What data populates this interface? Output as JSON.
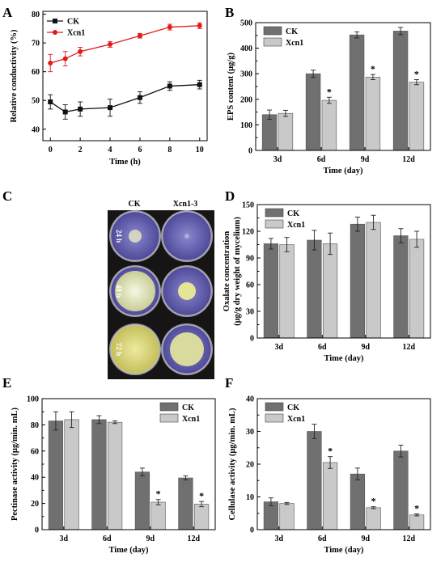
{
  "colors": {
    "ck_line": "#111111",
    "xcn_line": "#e01b1b",
    "ck_bar": "#707070",
    "xcn_bar": "#c9c9c9",
    "dish_purple": "#6f6bb5",
    "dish_yellow": "#d9d77a"
  },
  "chart_data": [
    {
      "panel": "A",
      "type": "line",
      "xlabel": "Time (h)",
      "ylabel": "Relative conductivity (%)",
      "x": [
        0,
        1,
        2,
        4,
        6,
        8,
        10
      ],
      "xticks": [
        "0",
        "2",
        "4",
        "6",
        "8",
        "10"
      ],
      "yticks": [
        "40",
        "50",
        "60",
        "70",
        "80"
      ],
      "xlim": [
        -0.5,
        10.5
      ],
      "ylim": [
        36,
        81
      ],
      "legend": "top-left",
      "series": [
        {
          "name": "CK",
          "values": [
            49.5,
            46,
            47,
            47.5,
            51,
            55,
            55.5
          ],
          "errors": [
            2.5,
            2.5,
            2.5,
            3,
            2,
            1.5,
            1.5
          ],
          "color": "#111111",
          "marker": "square"
        },
        {
          "name": "Xcn1",
          "values": [
            63,
            64.5,
            67,
            69.5,
            72.5,
            75.5,
            76
          ],
          "errors": [
            3,
            2.5,
            1.5,
            1,
            0.8,
            1,
            1
          ],
          "color": "#e01b1b",
          "marker": "circle"
        }
      ]
    },
    {
      "panel": "B",
      "type": "bar",
      "xlabel": "Time (day)",
      "ylabel": "EPS content (μg/g)",
      "categories": [
        "3d",
        "6d",
        "9d",
        "12d"
      ],
      "yticks": [
        "0",
        "100",
        "200",
        "300",
        "400",
        "500"
      ],
      "ylim": [
        0,
        500
      ],
      "legend": "top-left",
      "series": [
        {
          "name": "CK",
          "values": [
            140,
            300,
            452,
            467
          ],
          "errors": [
            18,
            14,
            12,
            14
          ]
        },
        {
          "name": "Xcn1",
          "values": [
            145,
            196,
            287,
            267
          ],
          "errors": [
            12,
            12,
            10,
            10
          ]
        }
      ],
      "significance": [
        null,
        "*",
        "*",
        "*"
      ]
    },
    {
      "panel": "D",
      "type": "bar",
      "xlabel": "Time (day)",
      "ylabel_line1": "Oxalate concentration",
      "ylabel_line2": "(μg/g dry weight of mycelium)",
      "categories": [
        "3d",
        "6d",
        "9d",
        "12d"
      ],
      "yticks": [
        "0",
        "30",
        "60",
        "90",
        "120",
        "150"
      ],
      "ylim": [
        0,
        150
      ],
      "legend": "top-left",
      "series": [
        {
          "name": "CK",
          "values": [
            106,
            110,
            128,
            115
          ],
          "errors": [
            6,
            11,
            8,
            8
          ]
        },
        {
          "name": "Xcn1",
          "values": [
            105,
            106,
            130,
            111
          ],
          "errors": [
            8,
            12,
            8,
            9
          ]
        }
      ],
      "significance": [
        null,
        null,
        null,
        null
      ]
    },
    {
      "panel": "E",
      "type": "bar",
      "xlabel": "Time (day)",
      "ylabel": "Pectinase activity (μg/min. mL)",
      "categories": [
        "3d",
        "6d",
        "9d",
        "12d"
      ],
      "yticks": [
        "0",
        "20",
        "40",
        "60",
        "80",
        "100"
      ],
      "ylim": [
        0,
        100
      ],
      "legend": "top-right",
      "series": [
        {
          "name": "CK",
          "values": [
            83,
            84,
            44,
            39.5
          ],
          "errors": [
            7,
            3,
            3,
            1.5
          ]
        },
        {
          "name": "Xcn1",
          "values": [
            84,
            82,
            21,
            19.5
          ],
          "errors": [
            6,
            1,
            2,
            2
          ]
        }
      ],
      "significance": [
        null,
        null,
        "*",
        "*"
      ]
    },
    {
      "panel": "F",
      "type": "bar",
      "xlabel": "Time (day)",
      "ylabel": "Cellulase activity (μg/min. mL)",
      "categories": [
        "3d",
        "6d",
        "9d",
        "12d"
      ],
      "yticks": [
        "0",
        "10",
        "20",
        "30",
        "40"
      ],
      "ylim": [
        0,
        40
      ],
      "legend": "top-left",
      "series": [
        {
          "name": "CK",
          "values": [
            8.5,
            30,
            17,
            24
          ],
          "errors": [
            1.2,
            2.2,
            1.8,
            1.8
          ]
        },
        {
          "name": "Xcn1",
          "values": [
            8,
            20.5,
            6.7,
            4.5
          ],
          "errors": [
            0.3,
            1.8,
            0.3,
            0.3
          ]
        }
      ],
      "significance": [
        null,
        "*",
        "*",
        "*"
      ]
    }
  ],
  "photo": {
    "panel": "C",
    "columns": [
      "CK",
      "Xcn1-3"
    ],
    "rows": [
      "24 h",
      "48 h",
      "72 h"
    ]
  }
}
